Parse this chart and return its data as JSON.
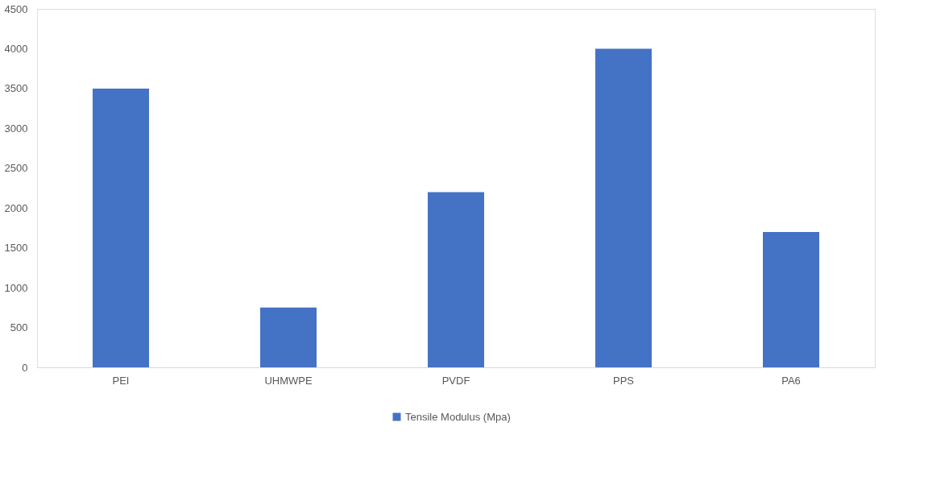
{
  "chart_data": {
    "type": "bar",
    "categories": [
      "PEI",
      "UHMWPE",
      "PVDF",
      "PPS",
      "PA6"
    ],
    "series": [
      {
        "name": "Tensile Modulus (Mpa)",
        "color": "#4472c4",
        "values": [
          3500,
          750,
          2200,
          4000,
          1700
        ]
      }
    ],
    "ylim": [
      0,
      4500
    ],
    "yticks": [
      0,
      500,
      1000,
      1500,
      2000,
      2500,
      3000,
      3500,
      4000,
      4500
    ],
    "grid": false,
    "legend": "bottom"
  }
}
